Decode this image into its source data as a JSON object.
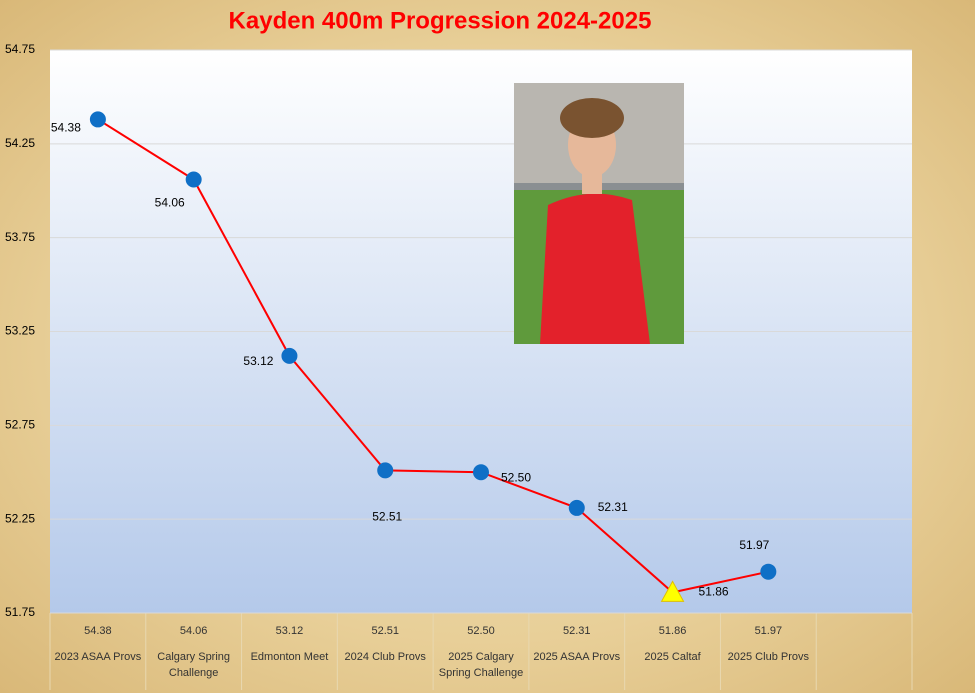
{
  "chart_data": {
    "type": "line",
    "title": "Kayden 400m Progression 2024-2025",
    "categories": [
      "2023 ASAA Provs",
      "Calgary Spring Challenge",
      "Edmonton Meet",
      "2024 Club Provs",
      "2025 Calgary Spring Challenge",
      "2025 ASAA Provs",
      "2025 Caltaf",
      "2025 Club Provs"
    ],
    "series": [
      {
        "color": "#ff0000",
        "values": [
          54.38,
          54.06,
          53.12,
          52.51,
          52.5,
          52.31,
          51.86,
          51.97
        ],
        "value_labels": [
          "54.38",
          "54.06",
          "53.12",
          "52.51",
          "52.50",
          "52.31",
          "51.86",
          "51.97"
        ],
        "marker_color": "#0f6fc6",
        "point_markers": [
          "circle",
          "circle",
          "circle",
          "circle",
          "circle",
          "circle",
          "triangle",
          "circle"
        ],
        "point_colors": [
          "#0f6fc6",
          "#0f6fc6",
          "#0f6fc6",
          "#0f6fc6",
          "#0f6fc6",
          "#0f6fc6",
          "#ffff00",
          "#0f6fc6"
        ]
      }
    ],
    "ylim": [
      51.75,
      54.75
    ],
    "yticks": [
      51.75,
      52.25,
      52.75,
      53.25,
      53.75,
      54.25,
      54.75
    ],
    "grid": true,
    "data_table": true
  }
}
